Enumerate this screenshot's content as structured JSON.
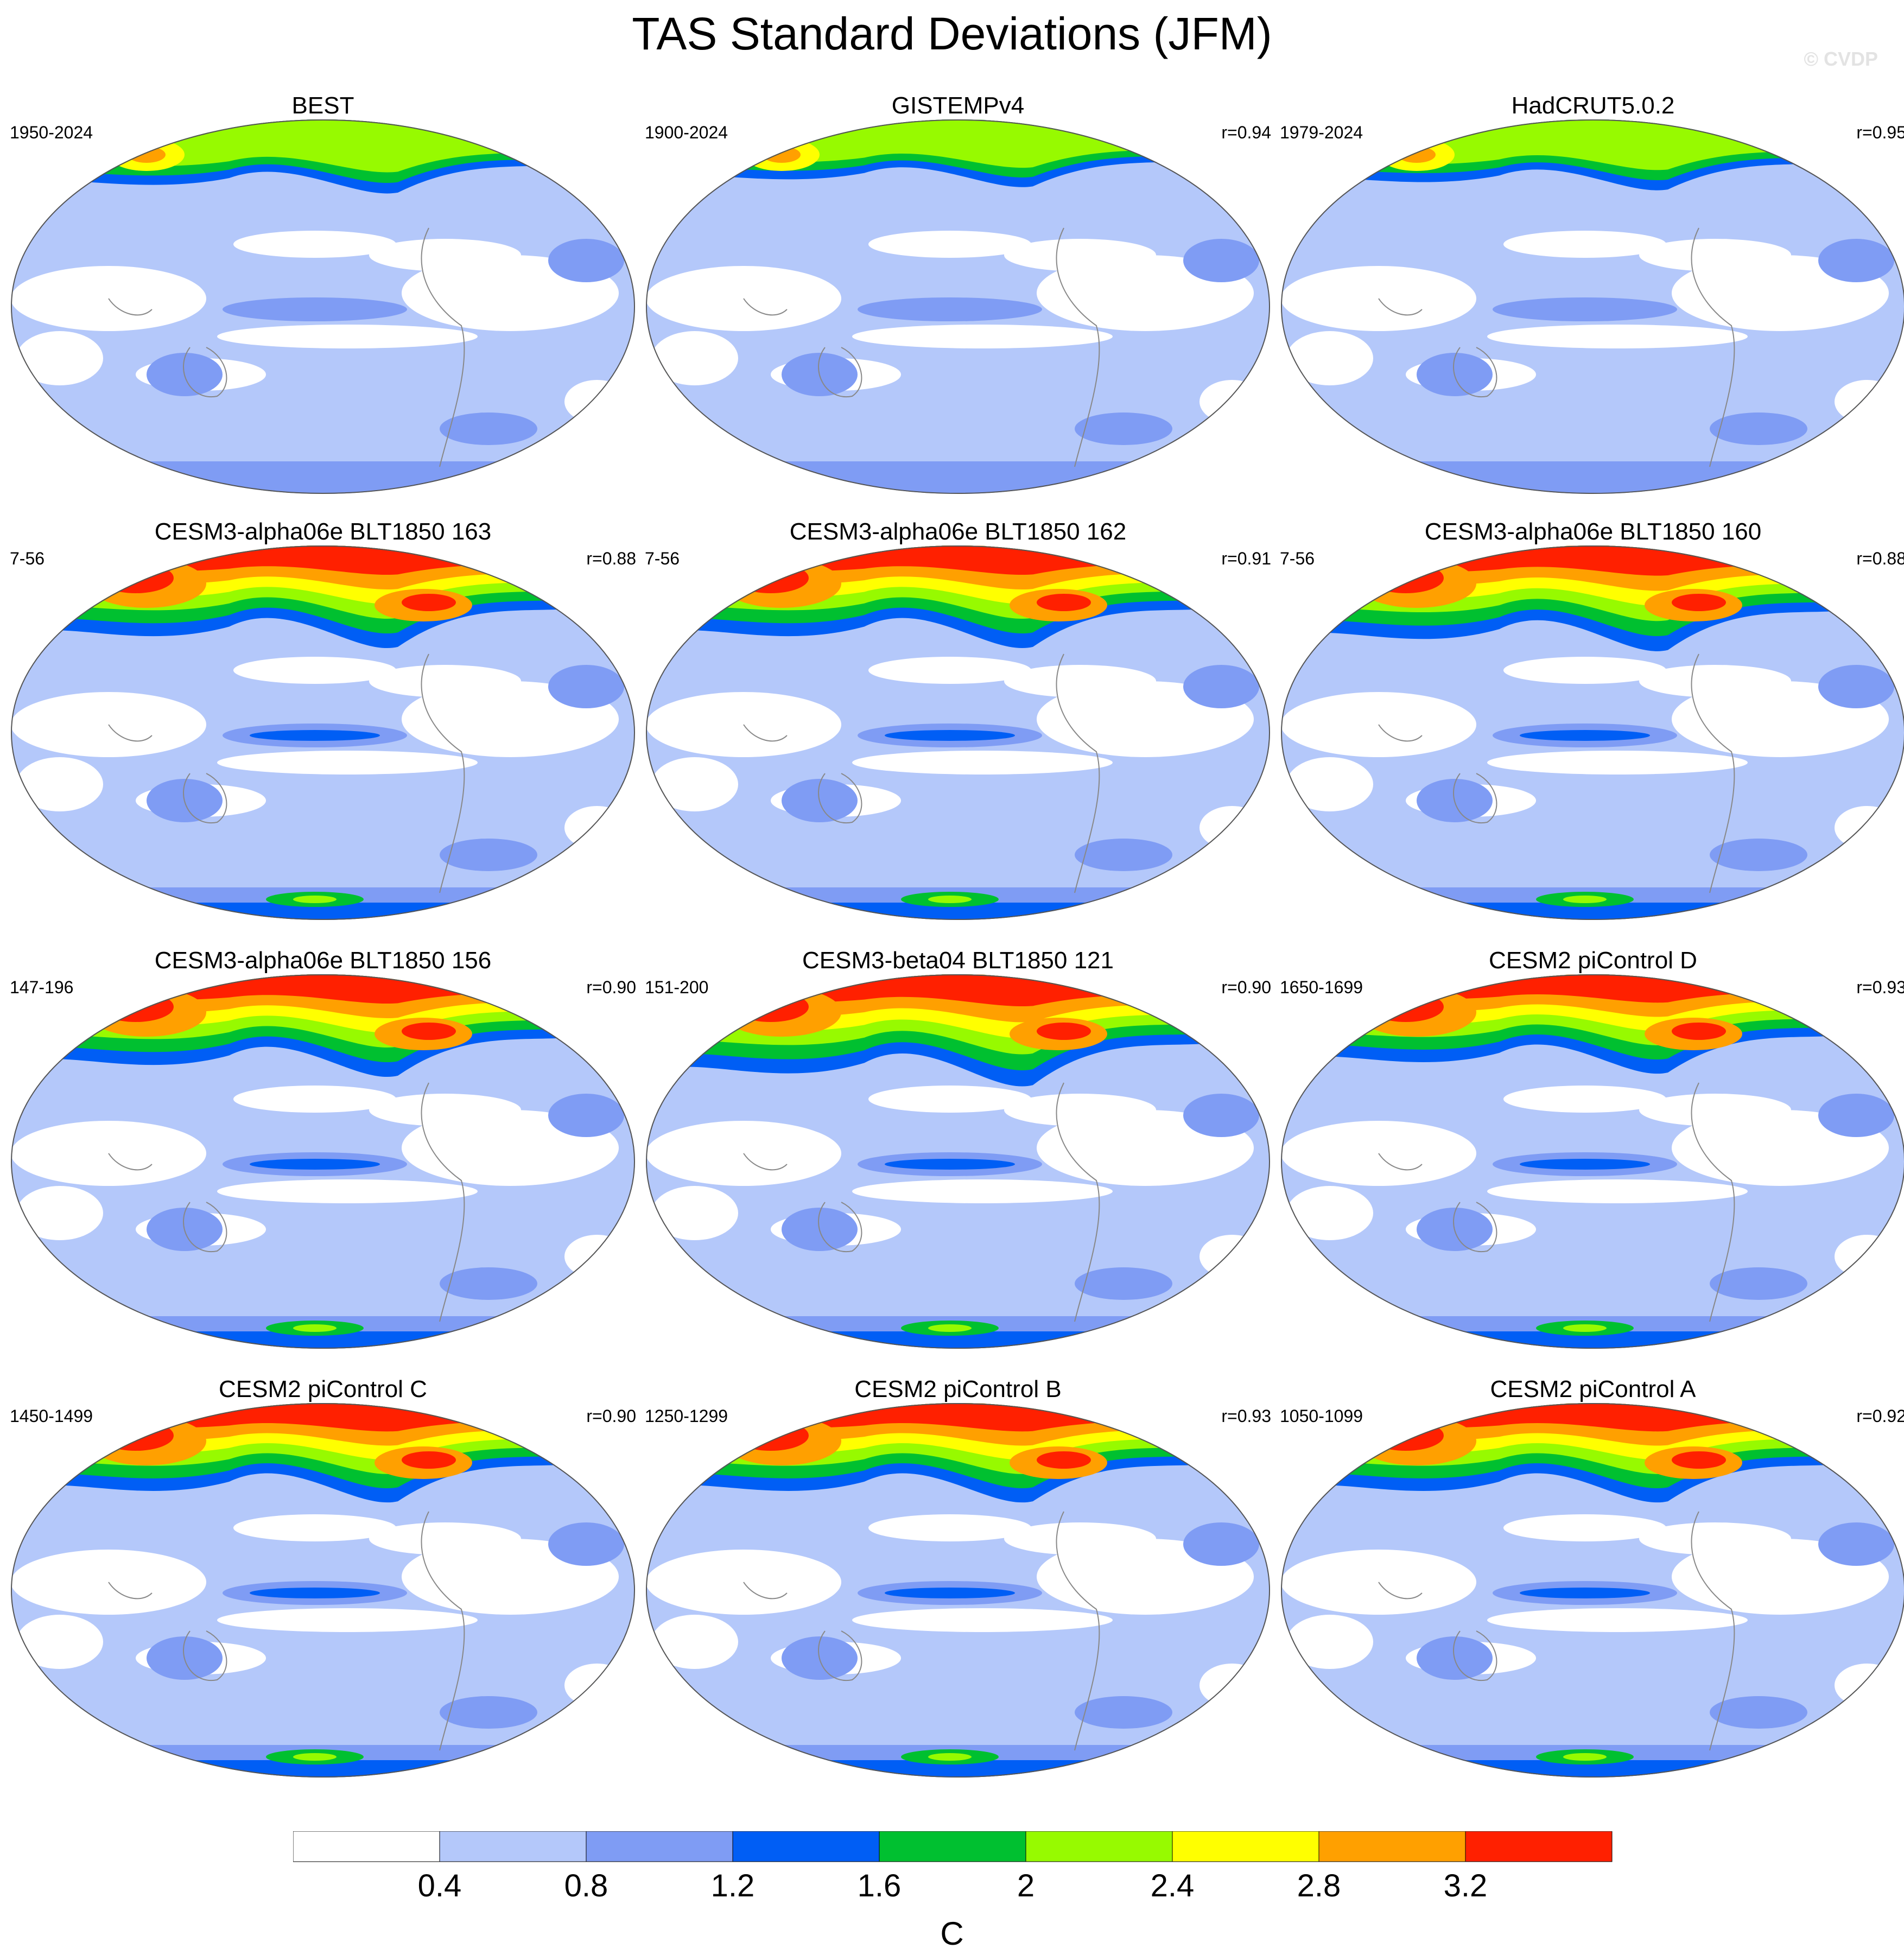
{
  "title": "TAS Standard Deviations (JFM)",
  "watermark": "© CVDP",
  "panels": [
    {
      "title": "BEST",
      "period": "1950-2024",
      "corr": "",
      "intensity": 0.35
    },
    {
      "title": "GISTEMPv4",
      "period": "1900-2024",
      "corr": "r=0.94",
      "intensity": 0.25
    },
    {
      "title": "HadCRUT5.0.2",
      "period": "1979-2024",
      "corr": "r=0.95",
      "intensity": 0.3
    },
    {
      "title": "CESM3-alpha06e BLT1850 163",
      "period": "7-56",
      "corr": "r=0.88",
      "intensity": 0.8
    },
    {
      "title": "CESM3-alpha06e BLT1850 162",
      "period": "7-56",
      "corr": "r=0.91",
      "intensity": 0.8
    },
    {
      "title": "CESM3-alpha06e BLT1850 160",
      "period": "7-56",
      "corr": "r=0.88",
      "intensity": 0.85
    },
    {
      "title": "CESM3-alpha06e BLT1850 156",
      "period": "147-196",
      "corr": "r=0.90",
      "intensity": 0.8
    },
    {
      "title": "CESM3-beta04 BLT1850 121",
      "period": "151-200",
      "corr": "r=0.90",
      "intensity": 0.95
    },
    {
      "title": "CESM2 piControl D",
      "period": "1650-1699",
      "corr": "r=0.93",
      "intensity": 0.75
    },
    {
      "title": "CESM2 piControl C",
      "period": "1450-1499",
      "corr": "r=0.90",
      "intensity": 0.75
    },
    {
      "title": "CESM2 piControl B",
      "period": "1250-1299",
      "corr": "r=0.93",
      "intensity": 0.75
    },
    {
      "title": "CESM2 piControl A",
      "period": "1050-1099",
      "corr": "r=0.92",
      "intensity": 0.75
    }
  ],
  "colorbar": {
    "labels": [
      "0.4",
      "0.8",
      "1.2",
      "1.6",
      "2",
      "2.4",
      "2.8",
      "3.2"
    ],
    "colors": [
      "#ffffff",
      "#b4c8fa",
      "#7f9cf4",
      "#005ef5",
      "#00c030",
      "#97fa00",
      "#ffff00",
      "#ffa000",
      "#ff2000"
    ],
    "unit": "C"
  }
}
